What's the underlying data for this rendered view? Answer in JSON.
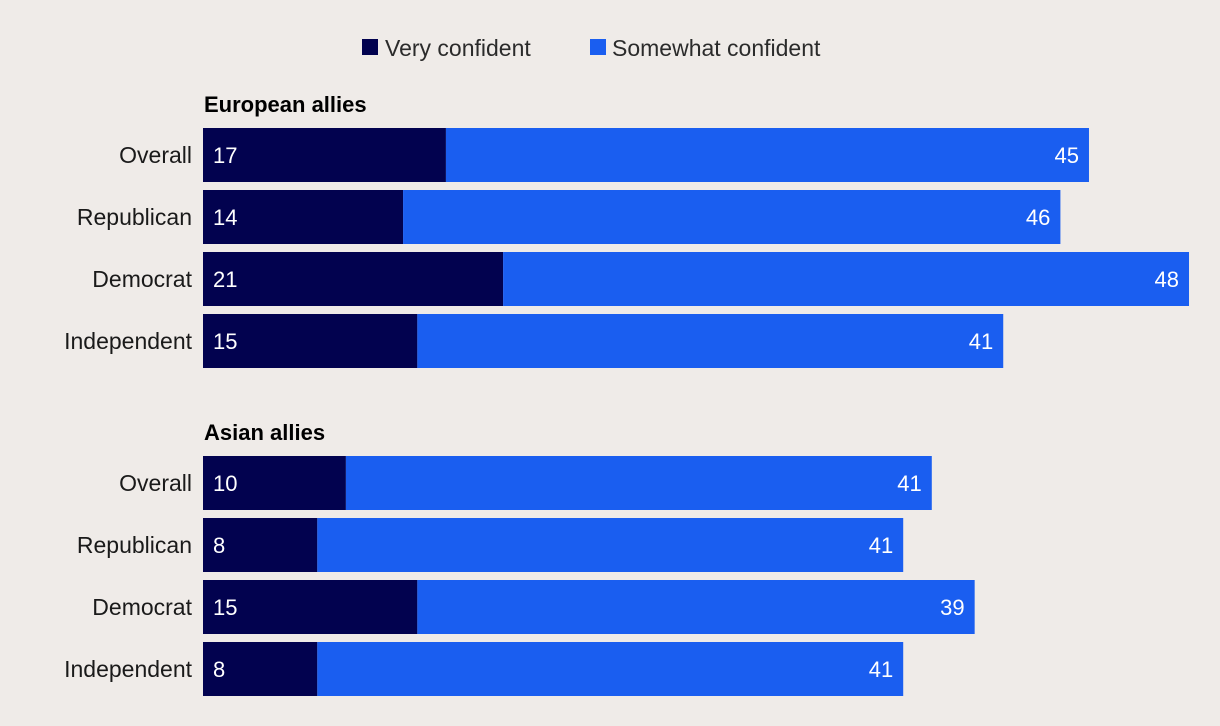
{
  "chart_data": {
    "type": "bar",
    "orientation": "horizontal",
    "stacked": true,
    "legend": [
      {
        "name": "Very confident",
        "color": "#02024f"
      },
      {
        "name": "Somewhat confident",
        "color": "#1a5ef0"
      }
    ],
    "groups": [
      {
        "title": "European allies",
        "categories": [
          "Overall",
          "Republican",
          "Democrat",
          "Independent"
        ],
        "series": [
          {
            "name": "Very confident",
            "values": [
              17,
              14,
              21,
              15
            ]
          },
          {
            "name": "Somewhat confident",
            "values": [
              45,
              46,
              48,
              41
            ]
          }
        ]
      },
      {
        "title": "Asian allies",
        "categories": [
          "Overall",
          "Republican",
          "Democrat",
          "Independent"
        ],
        "series": [
          {
            "name": "Very confident",
            "values": [
              10,
              8,
              15,
              8
            ]
          },
          {
            "name": "Somewhat confident",
            "values": [
              41,
              41,
              39,
              41
            ]
          }
        ]
      }
    ]
  }
}
